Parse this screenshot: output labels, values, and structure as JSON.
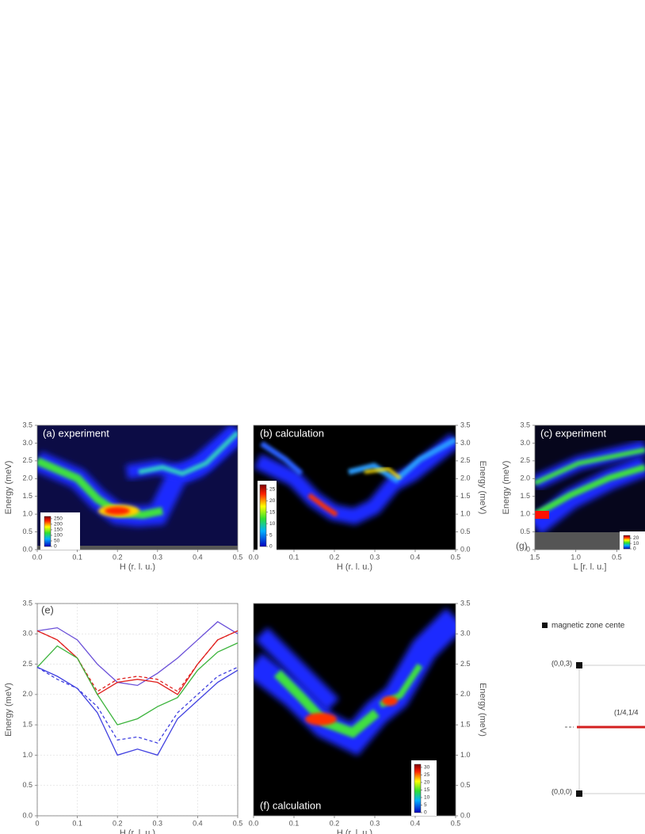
{
  "chart_data": [
    {
      "type": "heatmap",
      "title": "(a) experiment",
      "xlabel": "H (r. l. u.)",
      "ylabel": "Energy (meV)",
      "xlim": [
        0,
        0.5
      ],
      "xticks": [
        {
          "value": 0,
          "label": "0.0"
        },
        0.1,
        0.2,
        0.3,
        0.4,
        0.5
      ],
      "ylim": [
        0,
        3.5
      ],
      "yticks": [
        {
          "value": 0,
          "label": "0.0"
        },
        0.5,
        {
          "value": 1,
          "label": "1.0"
        },
        1.5,
        {
          "value": 2,
          "label": "2.0"
        },
        2.5,
        {
          "value": 3,
          "label": "3.0"
        },
        3.5
      ],
      "clim": [
        0,
        270
      ],
      "cticks": [
        0,
        50,
        100,
        150,
        200,
        250
      ]
    },
    {
      "type": "heatmap",
      "title": "(b) calculation",
      "xlabel": "H (r. l. u.)",
      "ylabel": "Energy (meV)",
      "xlim": [
        0,
        0.5
      ],
      "xticks": [
        {
          "value": 0,
          "label": "0.0"
        },
        0.1,
        0.2,
        0.3,
        0.4,
        0.5
      ],
      "ylim": [
        0,
        3.5
      ],
      "yticks": [
        {
          "value": 0,
          "label": "0.0"
        },
        0.5,
        {
          "value": 1,
          "label": "1.0"
        },
        1.5,
        {
          "value": 2,
          "label": "2.0"
        },
        2.5,
        {
          "value": 3,
          "label": "3.0"
        },
        3.5
      ],
      "clim": [
        0,
        27
      ],
      "cticks": [
        0,
        5,
        10,
        15,
        20,
        25
      ]
    },
    {
      "type": "heatmap",
      "title": "(c) experiment",
      "xlabel": "L [r. l. u.]",
      "ylabel": "Energy (meV)",
      "xlim": [
        1.5,
        0
      ],
      "xticks": [
        1.5,
        {
          "value": 1,
          "label": "1.0"
        },
        0.5
      ],
      "ylim": [
        0,
        3.5
      ],
      "yticks": [
        0,
        0.5,
        {
          "value": 1,
          "label": "1.0"
        },
        1.5,
        {
          "value": 2,
          "label": "2.0"
        },
        2.5,
        {
          "value": 3,
          "label": "3.0"
        },
        3.5
      ],
      "clim": [
        0,
        25
      ],
      "cticks": [
        0,
        10,
        20
      ]
    },
    {
      "type": "line",
      "title": "(e)",
      "xlabel": "H (r. l. u.)",
      "ylabel": "Energy (meV)",
      "grid": true,
      "x": [
        0,
        0.05,
        0.1,
        0.15,
        0.2,
        0.25,
        0.3,
        0.35,
        0.4,
        0.45,
        0.5
      ],
      "series": [
        {
          "color": "#6a4fd8",
          "style": "solid",
          "values": [
            3.05,
            3.1,
            2.9,
            2.5,
            2.2,
            2.15,
            2.35,
            2.6,
            2.9,
            3.2,
            3.0
          ]
        },
        {
          "color": "#e0201e",
          "style": "solid",
          "values": [
            3.05,
            2.9,
            2.6,
            2.0,
            2.2,
            2.25,
            2.2,
            2.0,
            2.5,
            2.9,
            3.05
          ]
        },
        {
          "color": "#e0201e",
          "style": "dashed",
          "values": [
            3.05,
            2.9,
            2.6,
            2.05,
            2.25,
            2.3,
            2.25,
            2.05,
            2.5,
            2.9,
            3.05
          ]
        },
        {
          "color": "#3cb43c",
          "style": "solid",
          "values": [
            2.45,
            2.8,
            2.6,
            2.0,
            1.5,
            1.6,
            1.8,
            1.95,
            2.4,
            2.7,
            2.85
          ]
        },
        {
          "color": "#4040e0",
          "style": "solid",
          "values": [
            2.45,
            2.3,
            2.1,
            1.7,
            1.0,
            1.1,
            1.0,
            1.6,
            1.9,
            2.2,
            2.4
          ]
        },
        {
          "color": "#4040e0",
          "style": "dashed",
          "values": [
            2.45,
            2.25,
            2.1,
            1.8,
            1.25,
            1.3,
            1.2,
            1.7,
            2.0,
            2.3,
            2.45
          ]
        }
      ],
      "xlim": [
        0,
        0.5
      ],
      "xticks": [
        {
          "value": 0,
          "label": "0"
        },
        0.1,
        0.2,
        0.3,
        0.4,
        0.5
      ],
      "ylim": [
        0,
        3.5
      ],
      "yticks": [
        {
          "value": 0,
          "label": "0.0"
        },
        0.5,
        {
          "value": 1,
          "label": "1.0"
        },
        1.5,
        {
          "value": 2,
          "label": "2.0"
        },
        2.5,
        {
          "value": 3,
          "label": "3.0"
        },
        3.5
      ]
    },
    {
      "type": "heatmap",
      "title": "(f) calculation",
      "xlabel": "H (r. l. u.)",
      "ylabel": "Energy (meV)",
      "xlim": [
        0,
        0.5
      ],
      "xticks": [
        {
          "value": 0,
          "label": "0.0"
        },
        0.1,
        0.2,
        0.3,
        0.4,
        0.5
      ],
      "ylim": [
        0,
        3.5
      ],
      "yticks": [
        {
          "value": 0,
          "label": "0.0"
        },
        0.5,
        {
          "value": 1,
          "label": "1.0"
        },
        1.5,
        {
          "value": 2,
          "label": "2.0"
        },
        2.5,
        {
          "value": 3,
          "label": "3.0"
        },
        3.5
      ],
      "clim": [
        0,
        32
      ],
      "cticks": [
        0,
        5,
        10,
        15,
        20,
        25,
        30
      ]
    }
  ],
  "panel_g": {
    "label": "(g)",
    "legend": "magnetic zone cente",
    "points": [
      "(0,0,3)",
      "(0,0,0)"
    ],
    "path_label": "(1/4,1/4"
  }
}
